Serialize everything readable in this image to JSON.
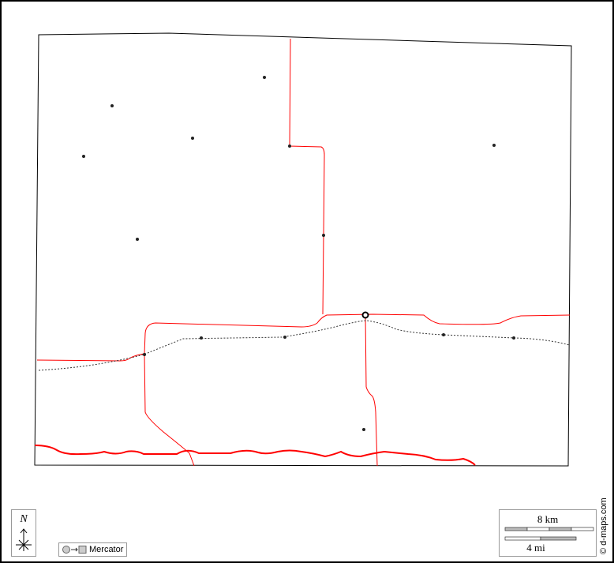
{
  "map": {
    "boundary_color": "#000000",
    "road_color": "#ff0000",
    "railway_style": "dotted",
    "place_count_markers": 14,
    "capital_marker": "circle"
  },
  "compass": {
    "label": "N",
    "icon": "north-arrow-icon"
  },
  "projection": {
    "label": "Mercator",
    "icon": "circle-to-square-icon"
  },
  "scale": {
    "km_label": "8 km",
    "mi_label": "4 mi"
  },
  "credit": "© d-maps.com"
}
